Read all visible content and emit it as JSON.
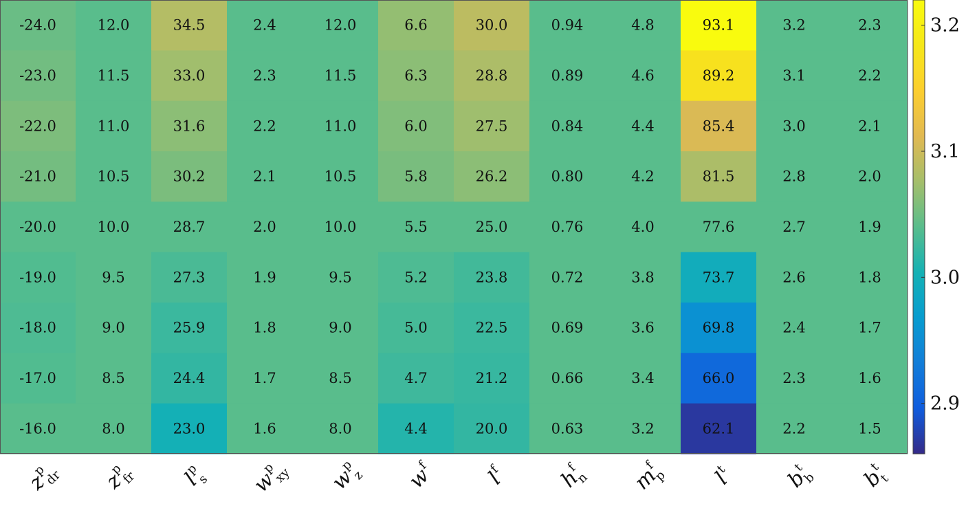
{
  "chart_data": {
    "type": "heatmap",
    "title": "",
    "xlabel": "",
    "ylabel": "",
    "x_tick_labels": [
      {
        "base": "z",
        "sup": "p",
        "sub": "dr"
      },
      {
        "base": "z",
        "sup": "p",
        "sub": "fr"
      },
      {
        "base": "l",
        "sup": "p",
        "sub": "s"
      },
      {
        "base": "w",
        "sup": "p",
        "sub": "xy"
      },
      {
        "base": "w",
        "sup": "p",
        "sub": "z"
      },
      {
        "base": "w",
        "sup": "f",
        "sub": ""
      },
      {
        "base": "l",
        "sup": "f",
        "sub": ""
      },
      {
        "base": "h",
        "sup": "f",
        "sub": "n"
      },
      {
        "base": "m",
        "sup": "f",
        "sub": "p"
      },
      {
        "base": "l",
        "sup": "t",
        "sub": ""
      },
      {
        "base": "b",
        "sup": "t",
        "sub": "b"
      },
      {
        "base": "b",
        "sup": "t",
        "sub": "t"
      }
    ],
    "cell_labels": [
      [
        "-24.0",
        "12.0",
        "34.5",
        "2.4",
        "12.0",
        "6.6",
        "30.0",
        "0.94",
        "4.8",
        "93.1",
        "3.2",
        "2.3"
      ],
      [
        "-23.0",
        "11.5",
        "33.0",
        "2.3",
        "11.5",
        "6.3",
        "28.8",
        "0.89",
        "4.6",
        "89.2",
        "3.1",
        "2.2"
      ],
      [
        "-22.0",
        "11.0",
        "31.6",
        "2.2",
        "11.0",
        "6.0",
        "27.5",
        "0.84",
        "4.4",
        "85.4",
        "3.0",
        "2.1"
      ],
      [
        "-21.0",
        "10.5",
        "30.2",
        "2.1",
        "10.5",
        "5.8",
        "26.2",
        "0.80",
        "4.2",
        "81.5",
        "2.8",
        "2.0"
      ],
      [
        "-20.0",
        "10.0",
        "28.7",
        "2.0",
        "10.0",
        "5.5",
        "25.0",
        "0.76",
        "4.0",
        "77.6",
        "2.7",
        "1.9"
      ],
      [
        "-19.0",
        "9.5",
        "27.3",
        "1.9",
        "9.5",
        "5.2",
        "23.8",
        "0.72",
        "3.8",
        "73.7",
        "2.6",
        "1.8"
      ],
      [
        "-18.0",
        "9.0",
        "25.9",
        "1.8",
        "9.0",
        "5.0",
        "22.5",
        "0.69",
        "3.6",
        "69.8",
        "2.4",
        "1.7"
      ],
      [
        "-17.0",
        "8.5",
        "24.4",
        "1.7",
        "8.5",
        "4.7",
        "21.2",
        "0.66",
        "3.4",
        "66.0",
        "2.3",
        "1.6"
      ],
      [
        "-16.0",
        "8.0",
        "23.0",
        "1.6",
        "8.0",
        "4.4",
        "20.0",
        "0.63",
        "3.2",
        "62.1",
        "2.2",
        "1.5"
      ]
    ],
    "color_values": [
      [
        3.048,
        3.04,
        3.085,
        3.04,
        3.04,
        3.068,
        3.09,
        3.04,
        3.04,
        3.22,
        3.04,
        3.04
      ],
      [
        3.052,
        3.04,
        3.074,
        3.04,
        3.04,
        3.064,
        3.081,
        3.04,
        3.04,
        3.175,
        3.04,
        3.04
      ],
      [
        3.057,
        3.04,
        3.064,
        3.04,
        3.04,
        3.059,
        3.073,
        3.04,
        3.04,
        3.108,
        3.04,
        3.04
      ],
      [
        3.053,
        3.04,
        3.056,
        3.04,
        3.04,
        3.055,
        3.064,
        3.04,
        3.04,
        3.08,
        3.04,
        3.04
      ],
      [
        3.04,
        3.04,
        3.04,
        3.04,
        3.04,
        3.04,
        3.04,
        3.04,
        3.04,
        3.04,
        3.04,
        3.04
      ],
      [
        3.036,
        3.04,
        3.032,
        3.04,
        3.04,
        3.034,
        3.028,
        3.04,
        3.04,
        2.995,
        3.04,
        3.04
      ],
      [
        3.034,
        3.04,
        3.024,
        3.04,
        3.04,
        3.03,
        3.024,
        3.04,
        3.04,
        2.955,
        3.04,
        3.04
      ],
      [
        3.036,
        3.04,
        3.02,
        3.04,
        3.04,
        3.026,
        3.022,
        3.04,
        3.04,
        2.91,
        3.04,
        3.04
      ],
      [
        3.04,
        3.04,
        3.002,
        3.04,
        3.04,
        3.012,
        3.02,
        3.04,
        3.04,
        2.87,
        3.04,
        3.04
      ]
    ],
    "colorbar": {
      "colormap": "parula",
      "range": [
        2.86,
        3.22
      ],
      "ticks": [
        2.9,
        3.0,
        3.1,
        3.2
      ],
      "tick_labels": [
        "2.9",
        "3.0",
        "3.1",
        "3.2"
      ]
    },
    "grid": false,
    "legend": "colorbar-right"
  }
}
